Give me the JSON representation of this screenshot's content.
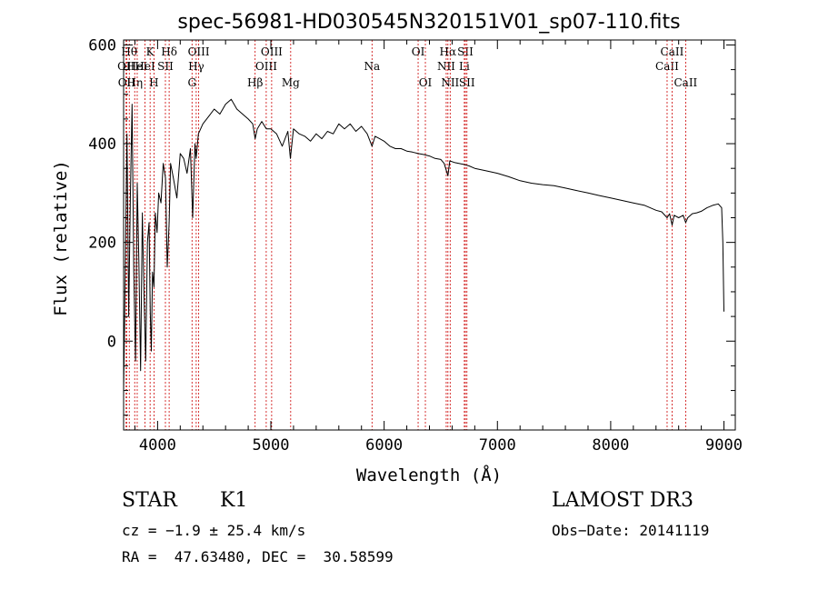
{
  "chart_data": {
    "type": "line",
    "title": "spec-56981-HD030545N320151V01_sp07-110.fits",
    "xlabel": "Wavelength (Å)",
    "ylabel": "Flux (relative)",
    "xlim": [
      3700,
      9100
    ],
    "ylim": [
      -180,
      610
    ],
    "xticks": [
      4000,
      5000,
      6000,
      7000,
      8000,
      9000
    ],
    "yticks": [
      0,
      200,
      400,
      600
    ],
    "series": [
      {
        "name": "spectrum",
        "x": [
          3700,
          3715,
          3730,
          3745,
          3760,
          3775,
          3790,
          3805,
          3820,
          3835,
          3850,
          3865,
          3880,
          3895,
          3910,
          3925,
          3935,
          3945,
          3955,
          3968,
          3980,
          3995,
          4010,
          4030,
          4050,
          4070,
          4085,
          4102,
          4115,
          4140,
          4170,
          4200,
          4230,
          4260,
          4290,
          4310,
          4330,
          4340,
          4360,
          4400,
          4450,
          4500,
          4550,
          4600,
          4650,
          4700,
          4750,
          4800,
          4840,
          4861,
          4880,
          4920,
          4960,
          5000,
          5050,
          5100,
          5150,
          5172,
          5200,
          5250,
          5300,
          5350,
          5400,
          5450,
          5500,
          5550,
          5600,
          5650,
          5700,
          5750,
          5800,
          5850,
          5893,
          5920,
          5960,
          6000,
          6050,
          6100,
          6150,
          6200,
          6250,
          6300,
          6350,
          6400,
          6450,
          6500,
          6530,
          6563,
          6580,
          6620,
          6660,
          6700,
          6750,
          6800,
          6900,
          7000,
          7100,
          7200,
          7300,
          7400,
          7500,
          7600,
          7700,
          7800,
          7900,
          8000,
          8100,
          8200,
          8300,
          8400,
          8450,
          8498,
          8520,
          8542,
          8560,
          8600,
          8640,
          8662,
          8680,
          8720,
          8760,
          8800,
          8850,
          8900,
          8950,
          8980,
          8990,
          9000
        ],
        "values": [
          -100,
          150,
          420,
          50,
          300,
          480,
          140,
          -40,
          320,
          160,
          -60,
          260,
          100,
          -40,
          200,
          240,
          60,
          -20,
          140,
          110,
          260,
          220,
          300,
          280,
          360,
          330,
          150,
          240,
          360,
          330,
          290,
          380,
          370,
          340,
          390,
          250,
          400,
          370,
          420,
          440,
          455,
          470,
          460,
          480,
          490,
          470,
          460,
          450,
          440,
          410,
          430,
          445,
          430,
          430,
          420,
          395,
          425,
          370,
          430,
          420,
          415,
          405,
          420,
          410,
          425,
          420,
          440,
          430,
          440,
          425,
          435,
          420,
          395,
          415,
          410,
          405,
          395,
          390,
          390,
          385,
          383,
          380,
          378,
          375,
          370,
          368,
          360,
          335,
          365,
          362,
          360,
          358,
          355,
          350,
          345,
          340,
          333,
          325,
          320,
          317,
          315,
          310,
          305,
          300,
          295,
          290,
          285,
          280,
          275,
          265,
          262,
          250,
          258,
          235,
          255,
          250,
          255,
          240,
          250,
          258,
          260,
          263,
          270,
          275,
          278,
          270,
          200,
          60
        ]
      }
    ],
    "lines": [
      {
        "x": 3722,
        "label": "OII",
        "row": 2
      },
      {
        "x": 3727,
        "label": "OII",
        "row": 3
      },
      {
        "x": 3750,
        "label": "Hθ",
        "row": 1
      },
      {
        "x": 3798,
        "label": "Hη",
        "row": 3
      },
      {
        "x": 3820,
        "label": "HeI",
        "row": 2
      },
      {
        "x": 3889,
        "label": "HeI",
        "row": 2
      },
      {
        "x": 3934,
        "label": "K",
        "row": 1
      },
      {
        "x": 3968,
        "label": "H",
        "row": 3
      },
      {
        "x": 4069,
        "label": "SII",
        "row": 2
      },
      {
        "x": 4102,
        "label": "Hδ",
        "row": 1
      },
      {
        "x": 4304,
        "label": "G",
        "row": 3
      },
      {
        "x": 4341,
        "label": "Hγ",
        "row": 2
      },
      {
        "x": 4363,
        "label": "OIII",
        "row": 1
      },
      {
        "x": 4861,
        "label": "Hβ",
        "row": 3
      },
      {
        "x": 4959,
        "label": "OIII",
        "row": 2
      },
      {
        "x": 5007,
        "label": "OIII",
        "row": 1
      },
      {
        "x": 5175,
        "label": "Mg",
        "row": 3
      },
      {
        "x": 5893,
        "label": "Na",
        "row": 2
      },
      {
        "x": 6300,
        "label": "OI",
        "row": 1
      },
      {
        "x": 6364,
        "label": "OI",
        "row": 3
      },
      {
        "x": 6548,
        "label": "NII",
        "row": 2
      },
      {
        "x": 6563,
        "label": "Hα",
        "row": 1
      },
      {
        "x": 6583,
        "label": "NII",
        "row": 3
      },
      {
        "x": 6708,
        "label": "Li",
        "row": 2
      },
      {
        "x": 6717,
        "label": "SII",
        "row": 1
      },
      {
        "x": 6731,
        "label": "SII",
        "row": 3
      },
      {
        "x": 8498,
        "label": "CaII",
        "row": 2
      },
      {
        "x": 8542,
        "label": "CaII",
        "row": 1
      },
      {
        "x": 8662,
        "label": "CaII",
        "row": 3
      }
    ]
  },
  "info": {
    "object_class": "STAR",
    "subclass": "K1",
    "survey": "LAMOST DR3",
    "cz": "cz = −1.9 ± 25.4 km/s",
    "obs_date": "Obs−Date: 20141119",
    "coords": "RA =  47.63480, DEC =  30.58599"
  }
}
